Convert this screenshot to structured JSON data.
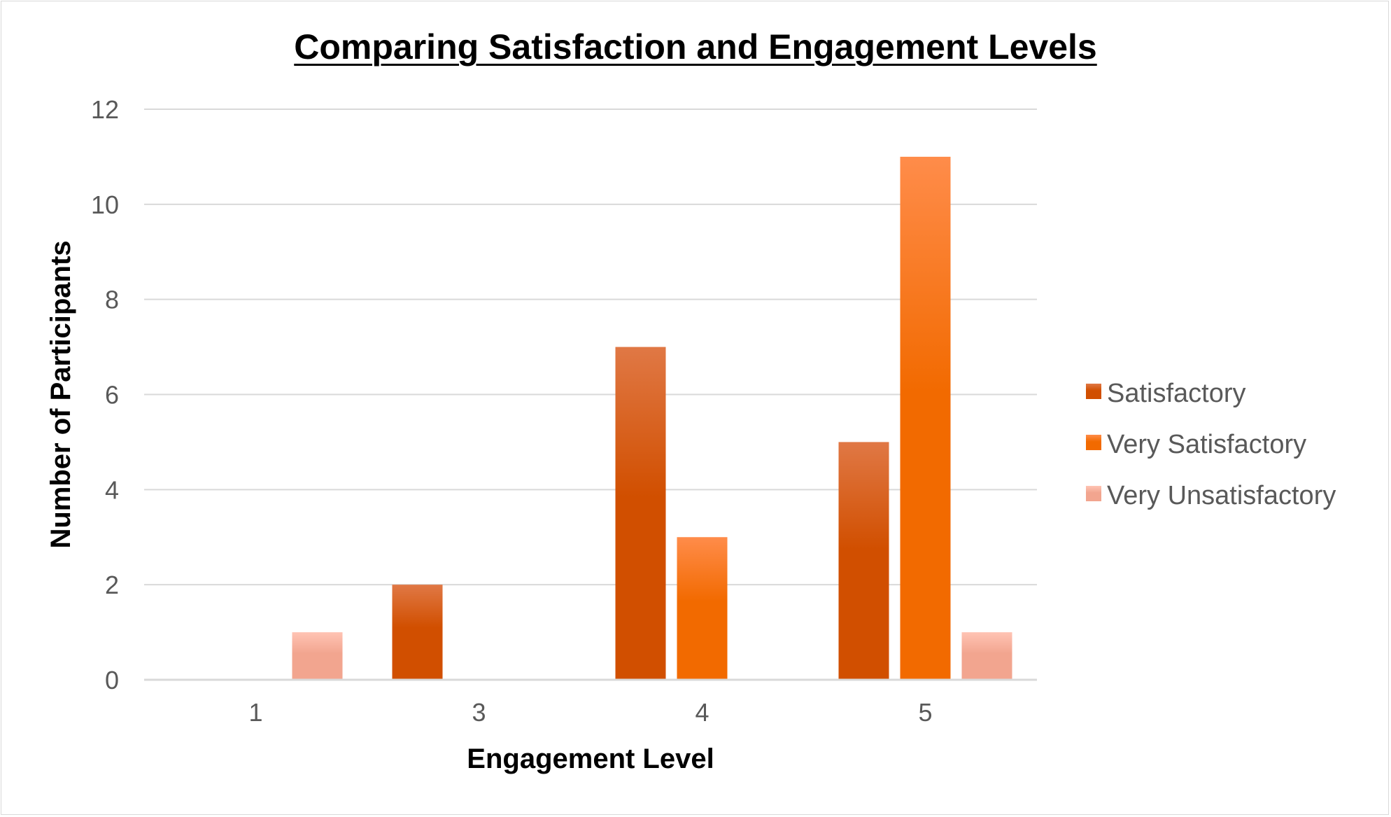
{
  "chart_data": {
    "type": "bar",
    "title": "Comparing Satisfaction and Engagement Levels",
    "xlabel": "Engagement Level",
    "ylabel": "Number of Participants",
    "categories": [
      "1",
      "3",
      "4",
      "5"
    ],
    "series": [
      {
        "name": "Satisfactory",
        "values": [
          0,
          2,
          7,
          5
        ],
        "color": "#d14f00",
        "color_light": "#e07845"
      },
      {
        "name": "Very Satisfactory",
        "values": [
          0,
          0,
          3,
          11
        ],
        "color": "#f26a00",
        "color_light": "#ff8c4a"
      },
      {
        "name": "Very Unsatisfactory",
        "values": [
          1,
          0,
          0,
          1
        ],
        "color": "#f2a58f",
        "color_light": "#ffc4b4"
      }
    ],
    "ylim": [
      0,
      12
    ],
    "yticks": [
      0,
      2,
      4,
      6,
      8,
      10,
      12
    ],
    "grid": true,
    "legend": "right"
  }
}
